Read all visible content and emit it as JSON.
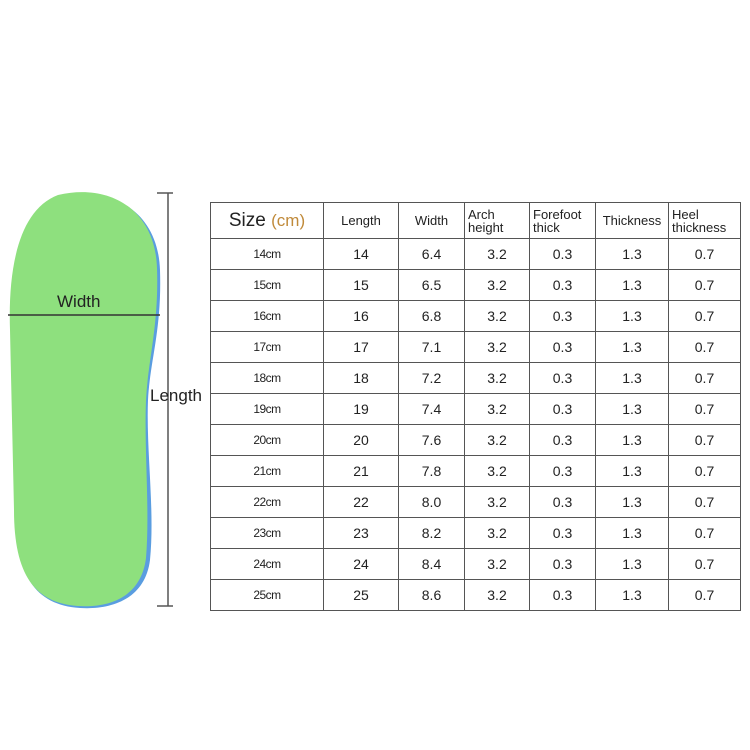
{
  "diagram": {
    "width_label": "Width",
    "length_label": "Length",
    "insole_color": "#8ee07e"
  },
  "table": {
    "headers": {
      "size": "Size",
      "size_unit": "(cm)",
      "length": "Length",
      "width": "Width",
      "arch_height": "Arch height",
      "forefoot_thick": "Forefoot thick",
      "thickness": "Thickness",
      "heel_thickness": "Heel thickness"
    },
    "rows": [
      [
        "14cm",
        "14",
        "6.4",
        "3.2",
        "0.3",
        "1.3",
        "0.7"
      ],
      [
        "15cm",
        "15",
        "6.5",
        "3.2",
        "0.3",
        "1.3",
        "0.7"
      ],
      [
        "16cm",
        "16",
        "6.8",
        "3.2",
        "0.3",
        "1.3",
        "0.7"
      ],
      [
        "17cm",
        "17",
        "7.1",
        "3.2",
        "0.3",
        "1.3",
        "0.7"
      ],
      [
        "18cm",
        "18",
        "7.2",
        "3.2",
        "0.3",
        "1.3",
        "0.7"
      ],
      [
        "19cm",
        "19",
        "7.4",
        "3.2",
        "0.3",
        "1.3",
        "0.7"
      ],
      [
        "20cm",
        "20",
        "7.6",
        "3.2",
        "0.3",
        "1.3",
        "0.7"
      ],
      [
        "21cm",
        "21",
        "7.8",
        "3.2",
        "0.3",
        "1.3",
        "0.7"
      ],
      [
        "22cm",
        "22",
        "8.0",
        "3.2",
        "0.3",
        "1.3",
        "0.7"
      ],
      [
        "23cm",
        "23",
        "8.2",
        "3.2",
        "0.3",
        "1.3",
        "0.7"
      ],
      [
        "24cm",
        "24",
        "8.4",
        "3.2",
        "0.3",
        "1.3",
        "0.7"
      ],
      [
        "25cm",
        "25",
        "8.6",
        "3.2",
        "0.3",
        "1.3",
        "0.7"
      ]
    ]
  }
}
